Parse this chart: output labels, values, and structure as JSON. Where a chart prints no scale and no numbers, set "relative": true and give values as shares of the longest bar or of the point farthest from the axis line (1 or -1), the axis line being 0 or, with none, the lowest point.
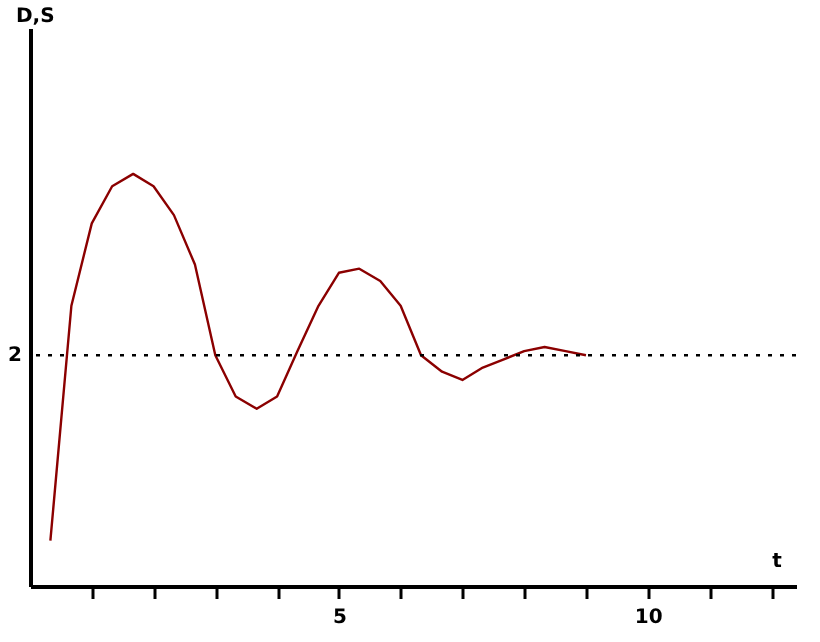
{
  "chart_data": {
    "type": "line",
    "xlabel": "t",
    "relative": true,
    "x": [
      0.33,
      0.67,
      1,
      1.33,
      1.67,
      2,
      2.33,
      2.67,
      3,
      3.33,
      3.67,
      4,
      4.33,
      4.67,
      5,
      5.33,
      5.67,
      6,
      6.33,
      6.67,
      7,
      7.33,
      7.67,
      8,
      8.33,
      8.67,
      9
    ],
    "series": [
      {
        "color": "#8b0000",
        "values": [
          0.11,
          0.68,
          0.88,
          0.97,
          1,
          0.97,
          0.9,
          0.78,
          0.56,
          0.46,
          0.43,
          0.46,
          0.57,
          0.68,
          0.76,
          0.77,
          0.74,
          0.68,
          0.56,
          0.52,
          0.5,
          0.53,
          0.55,
          0.57,
          0.58,
          0.57,
          0.56
        ]
      }
    ],
    "xlim": [
      0,
      12.4
    ],
    "xticks": [
      {
        "value": 1,
        "label": null
      },
      {
        "value": 2,
        "label": null
      },
      {
        "value": 3,
        "label": null
      },
      {
        "value": 4,
        "label": null
      },
      5,
      {
        "value": 6,
        "label": null
      },
      {
        "value": 7,
        "label": null
      },
      {
        "value": 8,
        "label": null
      },
      {
        "value": 9,
        "label": null
      },
      10,
      {
        "value": 11,
        "label": null
      },
      {
        "value": 12,
        "label": null
      }
    ],
    "ref_lines": [
      {
        "axis": "y",
        "value": 0.56,
        "line_style": "dotted",
        "color": "#000000"
      }
    ],
    "annotations": [
      "D,S",
      "2"
    ]
  }
}
